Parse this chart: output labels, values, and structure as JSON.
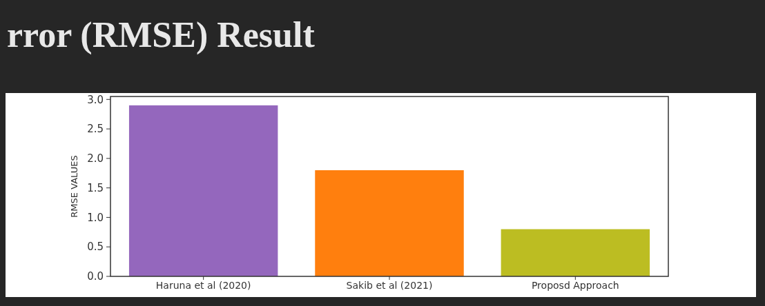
{
  "chart_data": {
    "type": "bar",
    "title": "rror (RMSE) Result",
    "ylabel": "RMSE VALUES",
    "categories": [
      "Haruna et al (2020)",
      "Sakib et al (2021)",
      "Proposd Approach"
    ],
    "values": [
      2.9,
      1.8,
      0.8
    ],
    "colors": [
      "#9467bd",
      "#ff7f0e",
      "#bcbd22"
    ],
    "ylim": [
      0,
      3.05
    ],
    "yticks": [
      {
        "value": 0,
        "label": "0.0"
      },
      {
        "value": 0.5,
        "label": "0.5"
      },
      {
        "value": 1,
        "label": "1.0"
      },
      {
        "value": 1.5,
        "label": "1.5"
      },
      {
        "value": 2,
        "label": "2.0"
      },
      {
        "value": 2.5,
        "label": "2.5"
      },
      {
        "value": 3,
        "label": "3.0"
      }
    ],
    "grid": false
  }
}
